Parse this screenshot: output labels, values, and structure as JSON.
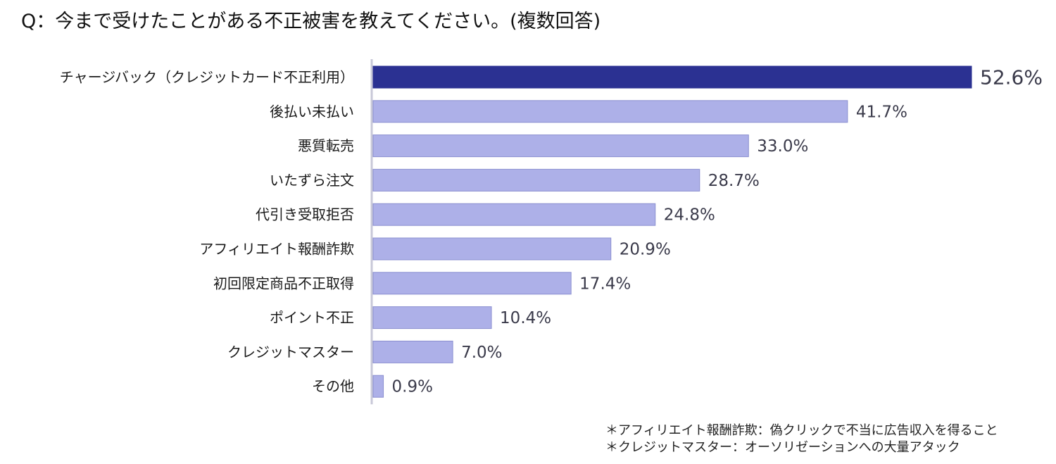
{
  "title": "Q：今まで受けたことがある不正被害を教えてください。(複数回答)",
  "chart_data": {
    "type": "bar",
    "orientation": "horizontal",
    "categories": [
      "チャージバック（クレジットカード不正利用）",
      "後払い未払い",
      "悪質転売",
      "いたずら注文",
      "代引き受取拒否",
      "アフィリエイト報酬詐欺",
      "初回限定商品不正取得",
      "ポイント不正",
      "クレジットマスター",
      "その他"
    ],
    "values": [
      52.6,
      41.7,
      33.0,
      28.7,
      24.8,
      20.9,
      17.4,
      10.4,
      7.0,
      0.9
    ],
    "value_labels": [
      "52.6%",
      "41.7%",
      "33.0%",
      "28.7%",
      "24.8%",
      "20.9%",
      "17.4%",
      "10.4%",
      "7.0%",
      "0.9%"
    ],
    "highlight_index": 0,
    "xlim": [
      0,
      52.6
    ],
    "grid": false,
    "colors": {
      "highlight": "#2b3192",
      "bar": "#adb0e8",
      "bar_edge": "#8a8fd0",
      "axis": "#c8c8d8",
      "label": "#3a3a4a"
    }
  },
  "footnotes": [
    "＊アフィリエイト報酬詐欺：偽クリックで不当に広告収入を得ること",
    "＊クレジットマスター：オーソリゼーションへの大量アタック"
  ]
}
